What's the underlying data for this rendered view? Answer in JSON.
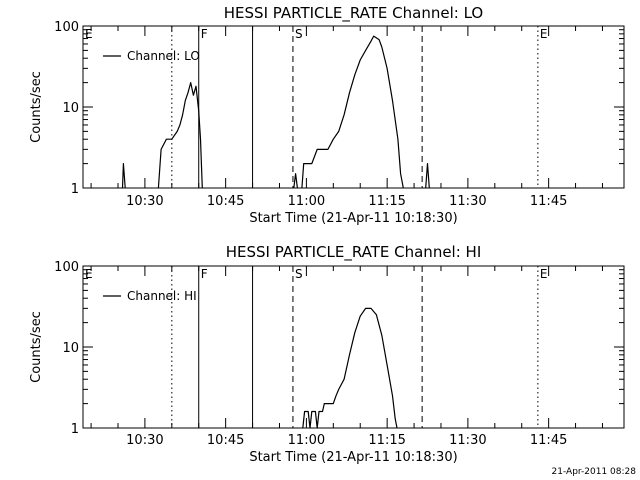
{
  "chart_data": [
    {
      "type": "line",
      "title": "HESSI PARTICLE_RATE Channel: LO",
      "xlabel": "Start Time (21-Apr-11 10:18:30)",
      "ylabel": "Counts/sec",
      "yscale": "log",
      "ylim": [
        1,
        100
      ],
      "xlim": [
        "10:18:30",
        "11:59:00"
      ],
      "x_ticks": [
        "10:30",
        "10:45",
        "11:00",
        "11:15",
        "11:30",
        "11:45"
      ],
      "y_ticks": [
        "1",
        "10",
        "100"
      ],
      "grid": false,
      "legend": {
        "position": "top-left",
        "entries": [
          "Channel: LO"
        ]
      },
      "series": [
        {
          "name": "Channel: LO",
          "segments": [
            [
              [
                "10:25:50",
                1
              ],
              [
                "10:26:00",
                2
              ],
              [
                "10:26:20",
                1
              ]
            ],
            [
              [
                "10:32:30",
                1
              ],
              [
                "10:33:00",
                3
              ],
              [
                "10:34:00",
                4
              ],
              [
                "10:35:00",
                4
              ],
              [
                "10:36:00",
                5
              ],
              [
                "10:36:30",
                6
              ],
              [
                "10:37:00",
                8
              ],
              [
                "10:37:30",
                12
              ],
              [
                "10:38:00",
                15
              ],
              [
                "10:38:30",
                20
              ],
              [
                "10:39:00",
                14
              ],
              [
                "10:39:30",
                18
              ],
              [
                "10:40:00",
                9
              ],
              [
                "10:40:20",
                4
              ],
              [
                "10:40:40",
                1
              ]
            ],
            [
              [
                "10:57:40",
                1
              ],
              [
                "10:58:00",
                1.5
              ],
              [
                "10:58:20",
                1
              ]
            ],
            [
              [
                "10:59:10",
                1
              ],
              [
                "10:59:30",
                2
              ],
              [
                "11:00:00",
                2
              ],
              [
                "11:01:00",
                2
              ],
              [
                "11:02:00",
                3
              ],
              [
                "11:03:00",
                3
              ],
              [
                "11:04:00",
                3
              ],
              [
                "11:05:00",
                4
              ],
              [
                "11:06:00",
                5
              ],
              [
                "11:07:00",
                8
              ],
              [
                "11:08:00",
                15
              ],
              [
                "11:09:00",
                25
              ],
              [
                "11:10:00",
                38
              ],
              [
                "11:11:00",
                50
              ],
              [
                "11:12:00",
                65
              ],
              [
                "11:12:30",
                75
              ],
              [
                "11:13:30",
                68
              ],
              [
                "11:14:00",
                55
              ],
              [
                "11:15:00",
                30
              ],
              [
                "11:16:00",
                12
              ],
              [
                "11:17:00",
                4
              ],
              [
                "11:17:30",
                1.5
              ],
              [
                "11:18:00",
                1
              ]
            ],
            [
              [
                "11:22:10",
                1
              ],
              [
                "11:22:30",
                2
              ],
              [
                "11:22:50",
                1
              ]
            ]
          ]
        }
      ],
      "markers": [
        {
          "label": "E",
          "time": "10:18:30",
          "style": "dotted"
        },
        {
          "label": "",
          "time": "10:35:00",
          "style": "dotted"
        },
        {
          "label": "F",
          "time": "10:40:00",
          "style": "solid"
        },
        {
          "label": "",
          "time": "10:50:00",
          "style": "solid"
        },
        {
          "label": "S",
          "time": "10:57:30",
          "style": "dashed"
        },
        {
          "label": "",
          "time": "11:21:30",
          "style": "dashed"
        },
        {
          "label": "E",
          "time": "11:43:00",
          "style": "dotted"
        },
        {
          "label": "",
          "time": "11:59:00",
          "style": "dotted"
        }
      ]
    },
    {
      "type": "line",
      "title": "HESSI PARTICLE_RATE Channel: HI",
      "xlabel": "Start Time (21-Apr-11 10:18:30)",
      "ylabel": "Counts/sec",
      "yscale": "log",
      "ylim": [
        1,
        100
      ],
      "xlim": [
        "10:18:30",
        "11:59:00"
      ],
      "x_ticks": [
        "10:30",
        "10:45",
        "11:00",
        "11:15",
        "11:30",
        "11:45"
      ],
      "y_ticks": [
        "1",
        "10",
        "100"
      ],
      "grid": false,
      "legend": {
        "position": "top-left",
        "entries": [
          "Channel: HI"
        ]
      },
      "series": [
        {
          "name": "Channel: HI",
          "segments": [
            [
              [
                "10:59:20",
                1
              ],
              [
                "10:59:40",
                1.6
              ],
              [
                "11:00:20",
                1.6
              ],
              [
                "11:00:40",
                1
              ],
              [
                "11:01:00",
                1.6
              ],
              [
                "11:01:40",
                1.6
              ],
              [
                "11:02:00",
                1
              ],
              [
                "11:02:20",
                1.6
              ],
              [
                "11:03:00",
                1.6
              ],
              [
                "11:03:20",
                2
              ],
              [
                "11:05:00",
                2
              ],
              [
                "11:05:30",
                2.5
              ],
              [
                "11:06:00",
                3
              ],
              [
                "11:07:00",
                4
              ],
              [
                "11:08:00",
                8
              ],
              [
                "11:09:00",
                15
              ],
              [
                "11:10:00",
                24
              ],
              [
                "11:11:00",
                30
              ],
              [
                "11:12:00",
                30
              ],
              [
                "11:13:00",
                25
              ],
              [
                "11:14:00",
                14
              ],
              [
                "11:15:00",
                6
              ],
              [
                "11:16:00",
                2.5
              ],
              [
                "11:16:30",
                1.3
              ],
              [
                "11:16:50",
                1
              ]
            ]
          ]
        }
      ],
      "markers": [
        {
          "label": "E",
          "time": "10:18:30",
          "style": "dotted"
        },
        {
          "label": "",
          "time": "10:35:00",
          "style": "dotted"
        },
        {
          "label": "F",
          "time": "10:40:00",
          "style": "solid"
        },
        {
          "label": "",
          "time": "10:50:00",
          "style": "solid"
        },
        {
          "label": "S",
          "time": "10:57:30",
          "style": "dashed"
        },
        {
          "label": "",
          "time": "11:21:30",
          "style": "dashed"
        },
        {
          "label": "E",
          "time": "11:43:00",
          "style": "dotted"
        },
        {
          "label": "",
          "time": "11:59:00",
          "style": "dotted"
        }
      ]
    }
  ],
  "footer": {
    "timestamp": "21-Apr-2011 08:28"
  }
}
